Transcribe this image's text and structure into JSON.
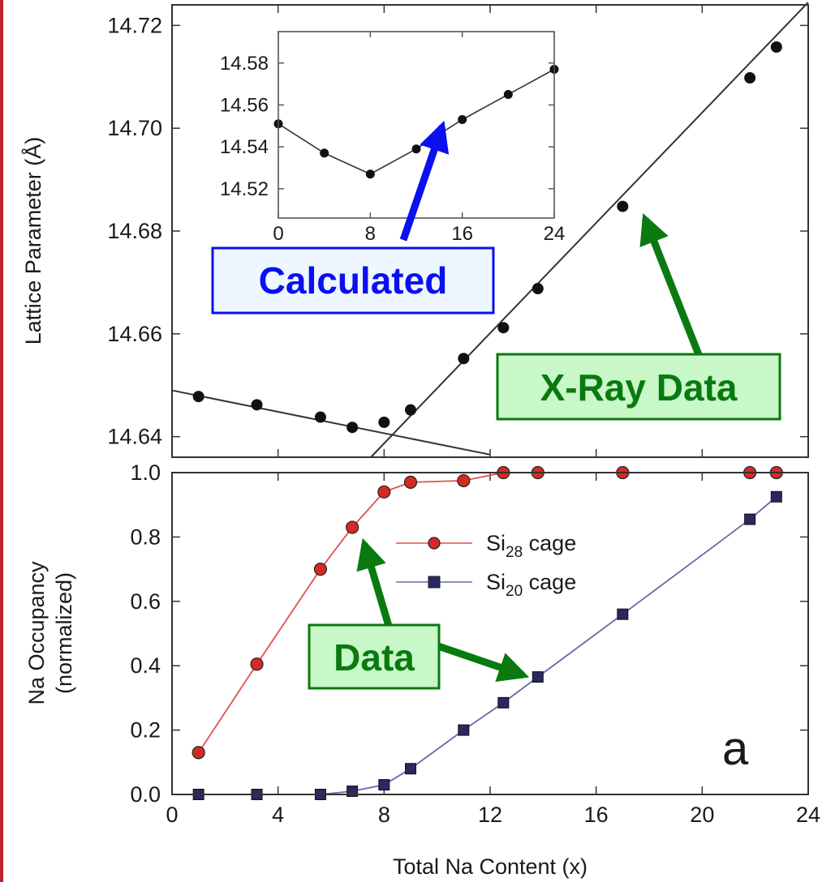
{
  "colors": {
    "red_series": "#e0514c",
    "red_marker": "#d42a24",
    "blue_series": "#6a66a8",
    "blue_marker": "#2a2860",
    "callout_blue": "#0a10f0",
    "callout_green": "#0a7a10",
    "box_fill_blue": "#eef6ff",
    "box_fill_green": "#c8f7c8",
    "frame_red": "#c0202a"
  },
  "annotations": {
    "calculated": "Calculated",
    "xray": "X-Ray Data",
    "data": "Data",
    "panel": "a"
  },
  "chart_data": [
    {
      "id": "top",
      "type": "scatter",
      "ylabel": "Lattice Parameter (Å)",
      "xlim": [
        0,
        24
      ],
      "ylim": [
        14.636,
        14.724
      ],
      "yticks": [
        "14.64",
        "14.66",
        "14.68",
        "14.70",
        "14.72"
      ],
      "yticks_values": [
        14.64,
        14.66,
        14.68,
        14.7,
        14.72
      ],
      "x": [
        1.0,
        3.2,
        5.6,
        6.8,
        8.0,
        9.0,
        11.0,
        12.5,
        13.8,
        17.0,
        21.8,
        22.8
      ],
      "y": [
        14.6478,
        14.6462,
        14.6438,
        14.6418,
        14.6428,
        14.6452,
        14.6552,
        14.6612,
        14.6688,
        14.6848,
        14.7098,
        14.7158
      ],
      "fit_lines": [
        {
          "x": [
            0,
            12
          ],
          "y": [
            14.649,
            14.6365
          ]
        },
        {
          "x": [
            7.5,
            24
          ],
          "y": [
            14.636,
            14.7245
          ]
        }
      ]
    },
    {
      "id": "inset",
      "type": "line",
      "xlim": [
        0,
        24
      ],
      "ylim": [
        14.506,
        14.595
      ],
      "xticks": [
        "0",
        "8",
        "16",
        "24"
      ],
      "xticks_values": [
        0,
        8,
        16,
        24
      ],
      "yticks": [
        "14.52",
        "14.54",
        "14.56",
        "14.58"
      ],
      "yticks_values": [
        14.52,
        14.54,
        14.56,
        14.58
      ],
      "x": [
        0,
        4,
        8,
        12,
        16,
        20,
        24
      ],
      "y": [
        14.551,
        14.537,
        14.527,
        14.539,
        14.553,
        14.565,
        14.577
      ]
    },
    {
      "id": "bottom",
      "type": "line",
      "xlabel": "Total Na Content (x)",
      "ylabel_line1": "Na Occupancy",
      "ylabel_line2": "(normalized)",
      "xlim": [
        0,
        24
      ],
      "ylim": [
        0,
        1
      ],
      "xticks": [
        "0",
        "4",
        "8",
        "12",
        "16",
        "20",
        "24"
      ],
      "xticks_values": [
        0,
        4,
        8,
        12,
        16,
        20,
        24
      ],
      "yticks": [
        "0.0",
        "0.2",
        "0.4",
        "0.6",
        "0.8",
        "1.0"
      ],
      "yticks_values": [
        0,
        0.2,
        0.4,
        0.6,
        0.8,
        1.0
      ],
      "legend_position": "upper-center",
      "series": [
        {
          "name_main": "Si",
          "name_sub": "28",
          "name_suffix": " cage",
          "marker": "circle",
          "x": [
            1.0,
            3.2,
            5.6,
            6.8,
            8.0,
            9.0,
            11.0,
            12.5,
            13.8,
            17.0,
            21.8,
            22.8
          ],
          "y": [
            0.13,
            0.405,
            0.7,
            0.83,
            0.94,
            0.97,
            0.975,
            1.0,
            1.0,
            1.0,
            1.0,
            1.0
          ]
        },
        {
          "name_main": "Si",
          "name_sub": "20",
          "name_suffix": " cage",
          "marker": "square",
          "x": [
            1.0,
            3.2,
            5.6,
            6.8,
            8.0,
            9.0,
            11.0,
            12.5,
            13.8,
            17.0,
            21.8,
            22.8
          ],
          "y": [
            0.0,
            0.0,
            0.0,
            0.01,
            0.03,
            0.08,
            0.2,
            0.285,
            0.365,
            0.56,
            0.855,
            0.925
          ]
        }
      ]
    }
  ]
}
